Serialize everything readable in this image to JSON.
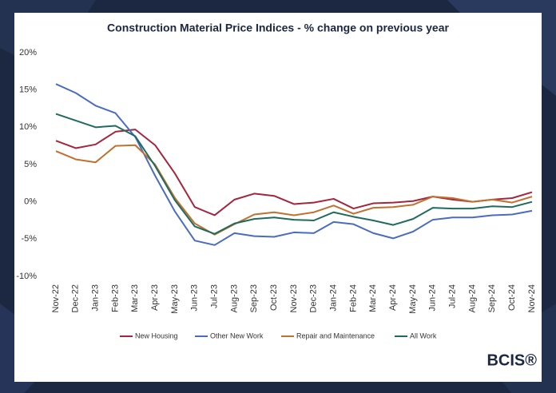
{
  "chart_data": {
    "type": "line",
    "title": "Construction Material Price Indices - % change on previous year",
    "categories": [
      "Nov-22",
      "Dec-22",
      "Jan-23",
      "Feb-23",
      "Mar-23",
      "Apr-23",
      "May-23",
      "Jun-23",
      "Jul-23",
      "Aug-23",
      "Sep-23",
      "Oct-23",
      "Nov-23",
      "Dec-23",
      "Jan-24",
      "Feb-24",
      "Mar-24",
      "Apr-24",
      "May-24",
      "Jun-24",
      "Jul-24",
      "Aug-24",
      "Sep-24",
      "Oct-24",
      "Nov-24"
    ],
    "series": [
      {
        "name": "New Housing",
        "color": "#a3263d",
        "values": [
          8.2,
          7.2,
          7.7,
          9.4,
          9.7,
          7.6,
          3.8,
          -0.7,
          -1.8,
          0.3,
          1.1,
          0.8,
          -0.3,
          -0.1,
          0.4,
          -0.9,
          -0.2,
          -0.1,
          0.1,
          0.7,
          0.3,
          0.0,
          0.3,
          0.5,
          1.3
        ]
      },
      {
        "name": "Other New Work",
        "color": "#4a6cbf",
        "values": [
          15.8,
          14.6,
          12.9,
          11.9,
          8.7,
          3.5,
          -1.3,
          -5.2,
          -5.8,
          -4.2,
          -4.6,
          -4.7,
          -4.1,
          -4.2,
          -2.7,
          -3.0,
          -4.2,
          -4.9,
          -4.0,
          -2.4,
          -2.1,
          -2.1,
          -1.8,
          -1.7,
          -1.2
        ]
      },
      {
        "name": "Repair and Maintenance",
        "color": "#c0702f",
        "values": [
          6.8,
          5.7,
          5.3,
          7.5,
          7.6,
          5.0,
          0.5,
          -2.9,
          -4.4,
          -3.0,
          -1.7,
          -1.4,
          -1.8,
          -1.4,
          -0.5,
          -1.6,
          -0.8,
          -0.7,
          -0.4,
          0.7,
          0.5,
          0.0,
          0.3,
          -0.1,
          0.7
        ]
      },
      {
        "name": "All Work",
        "color": "#1f6b5e",
        "values": [
          11.8,
          10.9,
          10.0,
          10.2,
          8.8,
          4.8,
          0.2,
          -3.3,
          -4.3,
          -2.9,
          -2.3,
          -2.1,
          -2.4,
          -2.5,
          -1.4,
          -2.0,
          -2.5,
          -3.1,
          -2.3,
          -0.8,
          -0.9,
          -0.9,
          -0.6,
          -0.7,
          0.0
        ]
      }
    ],
    "ylim": [
      -10,
      20
    ],
    "yticks": [
      {
        "value": -10,
        "label": "-10%"
      },
      {
        "value": -5,
        "label": "-5%"
      },
      {
        "value": 0,
        "label": "0%"
      },
      {
        "value": 5,
        "label": "5%"
      },
      {
        "value": 10,
        "label": "10%"
      },
      {
        "value": 15,
        "label": "15%"
      },
      {
        "value": 20,
        "label": "20%"
      }
    ],
    "grid": false,
    "legend": "bottom"
  },
  "logo": "BCIS®"
}
